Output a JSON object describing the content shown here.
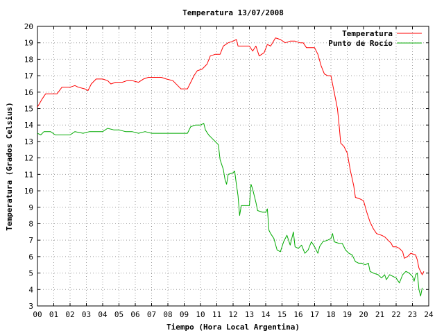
{
  "chart_data": {
    "type": "line",
    "title": "Temperatura 13/07/2008",
    "xlabel": "Tiempo (Hora Local Argentina)",
    "ylabel": "Temperatura (Grados Celsius)",
    "xlim": [
      0,
      24
    ],
    "ylim": [
      3,
      20
    ],
    "x_tick_labels": [
      "00",
      "01",
      "02",
      "03",
      "04",
      "05",
      "06",
      "07",
      "08",
      "09",
      "10",
      "11",
      "12",
      "13",
      "14",
      "15",
      "16",
      "17",
      "18",
      "19",
      "20",
      "21",
      "22",
      "23",
      "24"
    ],
    "y_ticks": [
      3,
      4,
      5,
      6,
      7,
      8,
      9,
      10,
      11,
      12,
      13,
      14,
      15,
      16,
      17,
      18,
      19,
      20
    ],
    "grid": true,
    "legend_position": "top-right",
    "series": [
      {
        "name": "Temperatura",
        "color": "#ff0000",
        "points": [
          [
            0,
            15.1
          ],
          [
            0.3,
            15.6
          ],
          [
            0.5,
            15.9
          ],
          [
            1.0,
            15.9
          ],
          [
            1.2,
            15.9
          ],
          [
            1.5,
            16.3
          ],
          [
            2.0,
            16.3
          ],
          [
            2.3,
            16.4
          ],
          [
            2.5,
            16.3
          ],
          [
            2.9,
            16.2
          ],
          [
            3.1,
            16.1
          ],
          [
            3.3,
            16.5
          ],
          [
            3.6,
            16.8
          ],
          [
            4.0,
            16.8
          ],
          [
            4.3,
            16.7
          ],
          [
            4.5,
            16.5
          ],
          [
            4.8,
            16.6
          ],
          [
            5.2,
            16.6
          ],
          [
            5.5,
            16.7
          ],
          [
            5.8,
            16.7
          ],
          [
            6.2,
            16.6
          ],
          [
            6.5,
            16.8
          ],
          [
            6.8,
            16.9
          ],
          [
            7.2,
            16.9
          ],
          [
            7.6,
            16.9
          ],
          [
            7.9,
            16.8
          ],
          [
            8.3,
            16.7
          ],
          [
            8.6,
            16.4
          ],
          [
            8.8,
            16.2
          ],
          [
            9.2,
            16.2
          ],
          [
            9.4,
            16.6
          ],
          [
            9.6,
            17.0
          ],
          [
            9.8,
            17.3
          ],
          [
            10.1,
            17.4
          ],
          [
            10.4,
            17.7
          ],
          [
            10.6,
            18.2
          ],
          [
            10.9,
            18.3
          ],
          [
            11.2,
            18.3
          ],
          [
            11.4,
            18.8
          ],
          [
            11.7,
            19.0
          ],
          [
            12.0,
            19.1
          ],
          [
            12.2,
            19.2
          ],
          [
            12.3,
            18.8
          ],
          [
            12.6,
            18.8
          ],
          [
            13.0,
            18.8
          ],
          [
            13.2,
            18.5
          ],
          [
            13.4,
            18.8
          ],
          [
            13.6,
            18.2
          ],
          [
            13.9,
            18.4
          ],
          [
            14.1,
            18.9
          ],
          [
            14.3,
            18.8
          ],
          [
            14.6,
            19.3
          ],
          [
            14.9,
            19.2
          ],
          [
            15.2,
            19.0
          ],
          [
            15.5,
            19.1
          ],
          [
            15.8,
            19.1
          ],
          [
            16.1,
            19.0
          ],
          [
            16.3,
            19.0
          ],
          [
            16.5,
            18.7
          ],
          [
            16.8,
            18.7
          ],
          [
            17.0,
            18.7
          ],
          [
            17.2,
            18.3
          ],
          [
            17.4,
            17.6
          ],
          [
            17.6,
            17.1
          ],
          [
            17.8,
            17.0
          ],
          [
            18.0,
            17.0
          ],
          [
            18.2,
            16.0
          ],
          [
            18.4,
            15.0
          ],
          [
            18.5,
            14.0
          ],
          [
            18.6,
            12.9
          ],
          [
            18.8,
            12.7
          ],
          [
            19.0,
            12.3
          ],
          [
            19.2,
            11.2
          ],
          [
            19.4,
            10.3
          ],
          [
            19.5,
            9.6
          ],
          [
            19.8,
            9.5
          ],
          [
            20.0,
            9.4
          ],
          [
            20.2,
            8.7
          ],
          [
            20.4,
            8.1
          ],
          [
            20.6,
            7.7
          ],
          [
            20.8,
            7.4
          ],
          [
            21.1,
            7.3
          ],
          [
            21.3,
            7.2
          ],
          [
            21.5,
            7.0
          ],
          [
            21.7,
            6.8
          ],
          [
            21.8,
            6.6
          ],
          [
            22.0,
            6.6
          ],
          [
            22.2,
            6.5
          ],
          [
            22.4,
            6.3
          ],
          [
            22.5,
            5.9
          ],
          [
            22.7,
            6.0
          ],
          [
            22.9,
            6.2
          ],
          [
            23.2,
            6.1
          ],
          [
            23.3,
            5.8
          ],
          [
            23.4,
            5.3
          ],
          [
            23.5,
            5.1
          ],
          [
            23.6,
            4.9
          ],
          [
            23.7,
            5.1
          ]
        ]
      },
      {
        "name": "Punto de Rocío",
        "color": "#00aa00",
        "points": [
          [
            0,
            13.5
          ],
          [
            0.2,
            13.4
          ],
          [
            0.4,
            13.6
          ],
          [
            0.8,
            13.6
          ],
          [
            1.1,
            13.4
          ],
          [
            1.6,
            13.4
          ],
          [
            2.0,
            13.4
          ],
          [
            2.3,
            13.6
          ],
          [
            2.8,
            13.5
          ],
          [
            3.2,
            13.6
          ],
          [
            3.6,
            13.6
          ],
          [
            4.0,
            13.6
          ],
          [
            4.3,
            13.8
          ],
          [
            4.7,
            13.7
          ],
          [
            5.0,
            13.7
          ],
          [
            5.4,
            13.6
          ],
          [
            5.8,
            13.6
          ],
          [
            6.2,
            13.5
          ],
          [
            6.6,
            13.6
          ],
          [
            7.0,
            13.5
          ],
          [
            7.4,
            13.5
          ],
          [
            7.8,
            13.5
          ],
          [
            8.2,
            13.5
          ],
          [
            8.6,
            13.5
          ],
          [
            9.0,
            13.5
          ],
          [
            9.2,
            13.5
          ],
          [
            9.4,
            13.9
          ],
          [
            9.7,
            14.0
          ],
          [
            10.0,
            14.0
          ],
          [
            10.2,
            14.1
          ],
          [
            10.3,
            13.7
          ],
          [
            10.5,
            13.4
          ],
          [
            10.7,
            13.2
          ],
          [
            10.9,
            13.0
          ],
          [
            11.1,
            12.8
          ],
          [
            11.2,
            11.9
          ],
          [
            11.4,
            11.3
          ],
          [
            11.5,
            10.7
          ],
          [
            11.6,
            10.4
          ],
          [
            11.7,
            11.0
          ],
          [
            12.0,
            11.1
          ],
          [
            12.1,
            11.2
          ],
          [
            12.2,
            10.4
          ],
          [
            12.3,
            9.7
          ],
          [
            12.4,
            8.5
          ],
          [
            12.5,
            9.1
          ],
          [
            12.7,
            9.1
          ],
          [
            13.0,
            9.1
          ],
          [
            13.1,
            10.4
          ],
          [
            13.2,
            10.1
          ],
          [
            13.4,
            9.3
          ],
          [
            13.5,
            8.8
          ],
          [
            13.8,
            8.7
          ],
          [
            14.0,
            8.7
          ],
          [
            14.1,
            8.9
          ],
          [
            14.2,
            7.6
          ],
          [
            14.3,
            7.4
          ],
          [
            14.5,
            7.1
          ],
          [
            14.7,
            6.4
          ],
          [
            14.9,
            6.3
          ],
          [
            15.1,
            6.9
          ],
          [
            15.3,
            7.3
          ],
          [
            15.5,
            6.7
          ],
          [
            15.7,
            7.5
          ],
          [
            15.8,
            6.6
          ],
          [
            16.0,
            6.5
          ],
          [
            16.2,
            6.7
          ],
          [
            16.4,
            6.2
          ],
          [
            16.6,
            6.4
          ],
          [
            16.8,
            6.9
          ],
          [
            17.0,
            6.6
          ],
          [
            17.2,
            6.2
          ],
          [
            17.3,
            6.6
          ],
          [
            17.5,
            6.9
          ],
          [
            17.8,
            7.0
          ],
          [
            18.0,
            7.1
          ],
          [
            18.1,
            7.4
          ],
          [
            18.2,
            6.9
          ],
          [
            18.5,
            6.8
          ],
          [
            18.7,
            6.8
          ],
          [
            18.9,
            6.4
          ],
          [
            19.1,
            6.2
          ],
          [
            19.3,
            6.1
          ],
          [
            19.5,
            5.7
          ],
          [
            19.7,
            5.6
          ],
          [
            19.9,
            5.6
          ],
          [
            20.1,
            5.5
          ],
          [
            20.3,
            5.6
          ],
          [
            20.4,
            5.1
          ],
          [
            20.6,
            5.0
          ],
          [
            20.9,
            4.9
          ],
          [
            21.1,
            4.7
          ],
          [
            21.3,
            4.9
          ],
          [
            21.4,
            4.6
          ],
          [
            21.6,
            4.9
          ],
          [
            21.8,
            4.8
          ],
          [
            22.0,
            4.7
          ],
          [
            22.2,
            4.4
          ],
          [
            22.4,
            4.9
          ],
          [
            22.6,
            5.1
          ],
          [
            22.8,
            5.0
          ],
          [
            23.0,
            4.8
          ],
          [
            23.1,
            4.5
          ],
          [
            23.2,
            4.9
          ],
          [
            23.3,
            5.0
          ],
          [
            23.4,
            4.0
          ],
          [
            23.5,
            3.6
          ],
          [
            23.6,
            4.1
          ]
        ]
      }
    ]
  }
}
